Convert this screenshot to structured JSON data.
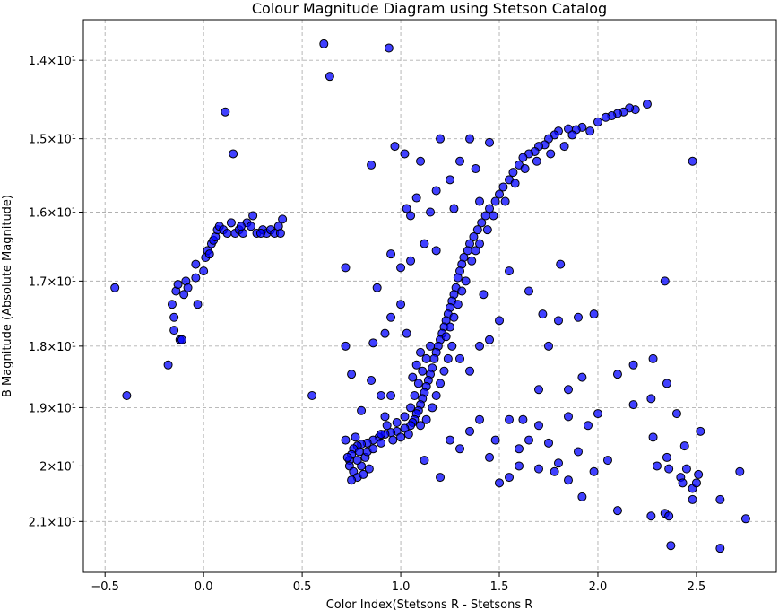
{
  "chart_data": {
    "type": "scatter",
    "title": "Colour Magnitude Diagram using Stetson Catalog",
    "x_label": "Color Index(Stetsons R - Stetsons R",
    "y_label": "B Magnitude (Absolute Magnitude)",
    "color": "#0000ff",
    "edge_color": "#000000",
    "grid": true,
    "log_y": true,
    "invert_y": true,
    "xlim": [
      -0.61,
      2.905
    ],
    "ylim": [
      13.51,
      21.96
    ],
    "xticks": [
      {
        "value": -0.5,
        "label": "−0.5"
      },
      {
        "value": 0,
        "label": "0.0"
      },
      0.5,
      {
        "value": 1,
        "label": "1.0"
      },
      1.5,
      {
        "value": 2,
        "label": "2.0"
      },
      2.5
    ],
    "yticks": [
      {
        "value": 14,
        "label": "1.4×10¹"
      },
      {
        "value": 15,
        "label": "1.5×10¹"
      },
      {
        "value": 16,
        "label": "1.6×10¹"
      },
      {
        "value": 17,
        "label": "1.7×10¹"
      },
      {
        "value": 18,
        "label": "1.8×10¹"
      },
      {
        "value": 19,
        "label": "1.9×10¹"
      },
      {
        "value": 20,
        "label": "2×10¹"
      },
      {
        "value": 21,
        "label": "2.1×10¹"
      }
    ],
    "x": [
      -0.45,
      -0.39,
      -0.18,
      -0.12,
      -0.11,
      -0.15,
      -0.15,
      -0.16,
      -0.14,
      -0.13,
      -0.1,
      -0.09,
      -0.08,
      -0.04,
      -0.03,
      -0.04,
      0.0,
      0.01,
      0.02,
      0.03,
      0.04,
      0.05,
      0.06,
      0.07,
      0.08,
      0.1,
      0.12,
      0.14,
      0.16,
      0.18,
      0.2,
      0.22,
      0.24,
      0.25,
      0.27,
      0.3,
      0.32,
      0.34,
      0.36,
      0.38,
      0.39,
      0.4,
      0.29,
      0.19,
      0.61,
      0.64,
      0.94,
      0.11,
      0.15,
      0.55,
      2.48,
      1.81,
      2.34,
      2.25,
      2.19,
      2.16,
      2.13,
      2.1,
      2.07,
      2.04,
      2.0,
      1.92,
      1.89,
      1.85,
      1.8,
      1.78,
      1.75,
      1.73,
      1.7,
      1.68,
      1.65,
      1.62,
      1.6,
      1.57,
      1.55,
      1.52,
      1.5,
      1.48,
      1.45,
      1.43,
      1.41,
      1.39,
      1.37,
      1.35,
      1.34,
      1.32,
      1.31,
      1.3,
      1.29,
      1.28,
      1.27,
      1.26,
      1.25,
      1.24,
      1.23,
      1.22,
      1.21,
      1.2,
      1.19,
      1.18,
      1.17,
      1.16,
      1.15,
      1.14,
      1.13,
      1.12,
      1.11,
      1.1,
      1.09,
      1.08,
      1.07,
      1.06,
      1.05,
      1.02,
      0.98,
      0.95,
      0.92,
      0.89,
      0.86,
      0.83,
      0.8,
      0.78,
      0.76,
      0.75,
      0.74,
      0.74,
      0.76,
      0.78,
      0.8,
      0.82,
      0.84,
      0.79,
      0.77,
      0.72,
      0.73,
      0.75,
      0.9,
      0.96,
      1.0,
      1.04,
      1.1,
      1.13,
      1.16,
      1.18,
      1.2,
      1.22,
      1.24,
      1.26,
      1.23,
      1.25,
      1.27,
      1.29,
      1.31,
      1.33,
      1.36,
      1.38,
      1.4,
      1.44,
      1.47,
      1.53,
      1.58,
      1.63,
      1.69,
      1.76,
      1.83,
      1.87,
      1.96,
      0.85,
      0.97,
      1.02,
      1.1,
      1.2,
      1.3,
      1.35,
      1.45,
      1.38,
      1.25,
      1.18,
      1.08,
      1.03,
      1.05,
      1.15,
      1.27,
      1.4,
      0.95,
      1.0,
      1.05,
      1.12,
      1.18,
      0.72,
      0.88,
      0.95,
      1.0,
      1.03,
      0.92,
      0.86,
      0.72,
      0.75,
      0.85,
      0.9,
      0.95,
      0.8,
      0.92,
      1.3,
      1.35,
      1.4,
      1.45,
      1.5,
      1.42,
      1.55,
      1.65,
      1.72,
      1.8,
      1.9,
      1.98,
      1.7,
      1.75,
      1.85,
      1.92,
      2.1,
      2.18,
      2.28,
      2.27,
      2.18,
      2.35,
      2.4,
      2.52,
      2.0,
      1.95,
      1.85,
      1.7,
      1.65,
      1.75,
      1.9,
      1.8,
      1.85,
      1.92,
      1.98,
      2.05,
      2.1,
      2.27,
      2.28,
      2.3,
      2.35,
      2.36,
      2.42,
      2.45,
      2.48,
      2.5,
      2.51,
      2.43,
      2.48,
      2.62,
      2.72,
      2.75,
      2.62,
      2.37,
      2.34,
      2.36,
      2.44,
      1.6,
      1.55,
      1.5,
      1.45,
      1.48,
      1.4,
      1.3,
      1.25,
      1.12,
      1.2,
      1.35,
      1.55,
      1.62,
      1.6,
      1.7,
      1.78,
      0.78,
      0.81,
      0.83,
      0.86,
      0.9,
      0.93,
      0.98,
      1.02,
      1.05,
      1.07,
      1.09,
      1.11,
      1.13,
      1.15,
      1.08,
      1.06,
      1.1
    ],
    "values": [
      17.1,
      18.8,
      18.3,
      17.9,
      17.9,
      17.75,
      17.55,
      17.35,
      17.15,
      17.05,
      17.2,
      17.0,
      17.1,
      16.95,
      17.35,
      16.75,
      16.85,
      16.65,
      16.55,
      16.6,
      16.45,
      16.4,
      16.35,
      16.25,
      16.2,
      16.25,
      16.3,
      16.15,
      16.3,
      16.25,
      16.3,
      16.15,
      16.2,
      16.05,
      16.3,
      16.25,
      16.3,
      16.25,
      16.3,
      16.2,
      16.3,
      16.1,
      16.3,
      16.2,
      13.8,
      14.2,
      13.85,
      14.65,
      15.2,
      18.8,
      15.3,
      16.75,
      17.0,
      14.55,
      14.62,
      14.6,
      14.65,
      14.67,
      14.7,
      14.72,
      14.78,
      14.85,
      14.88,
      14.87,
      14.9,
      14.95,
      15.0,
      15.08,
      15.1,
      15.17,
      15.2,
      15.25,
      15.35,
      15.45,
      15.55,
      15.65,
      15.75,
      15.85,
      15.95,
      16.05,
      16.15,
      16.25,
      16.35,
      16.45,
      16.55,
      16.65,
      16.75,
      16.85,
      16.95,
      17.1,
      17.2,
      17.3,
      17.4,
      17.5,
      17.6,
      17.7,
      17.8,
      17.9,
      18.0,
      18.1,
      18.2,
      18.35,
      18.45,
      18.55,
      18.65,
      18.75,
      18.85,
      18.95,
      19.05,
      19.1,
      19.2,
      19.25,
      19.3,
      19.35,
      19.4,
      19.42,
      19.45,
      19.5,
      19.55,
      19.6,
      19.62,
      19.65,
      19.7,
      19.8,
      19.9,
      20.0,
      20.1,
      20.2,
      20.0,
      19.85,
      20.05,
      19.75,
      19.5,
      19.55,
      19.85,
      20.25,
      19.6,
      19.55,
      19.5,
      19.45,
      19.3,
      19.2,
      19.0,
      18.8,
      18.6,
      18.4,
      18.2,
      18.0,
      17.85,
      17.7,
      17.55,
      17.35,
      17.15,
      17.0,
      16.7,
      16.55,
      16.45,
      16.25,
      16.05,
      15.85,
      15.6,
      15.4,
      15.3,
      15.2,
      15.1,
      14.95,
      14.9,
      15.35,
      15.1,
      15.2,
      15.3,
      15.0,
      15.3,
      15.0,
      15.05,
      15.4,
      15.55,
      15.7,
      15.8,
      15.95,
      16.05,
      16.0,
      15.95,
      15.85,
      16.6,
      16.8,
      16.7,
      16.45,
      16.55,
      16.8,
      17.1,
      17.55,
      17.35,
      17.8,
      17.8,
      17.95,
      18.0,
      18.45,
      18.55,
      18.8,
      18.8,
      19.05,
      19.15,
      18.2,
      18.4,
      18.0,
      17.9,
      17.6,
      17.2,
      16.85,
      17.15,
      17.5,
      17.6,
      17.55,
      17.5,
      18.7,
      18.0,
      18.7,
      18.5,
      18.45,
      18.3,
      18.2,
      18.85,
      18.95,
      18.6,
      19.1,
      19.4,
      19.1,
      19.3,
      19.15,
      19.3,
      19.55,
      19.6,
      19.75,
      19.95,
      20.25,
      20.55,
      20.1,
      19.9,
      20.8,
      20.9,
      19.5,
      20.0,
      19.85,
      20.05,
      20.2,
      20.05,
      20.4,
      20.3,
      20.15,
      20.3,
      20.6,
      20.6,
      20.1,
      20.95,
      21.5,
      21.45,
      20.85,
      20.9,
      19.65,
      20.0,
      20.2,
      20.3,
      19.85,
      19.55,
      19.2,
      19.7,
      19.55,
      19.9,
      20.2,
      19.4,
      19.2,
      19.2,
      19.7,
      20.05,
      20.1,
      19.9,
      20.15,
      19.75,
      19.7,
      19.45,
      19.3,
      19.25,
      19.15,
      19.0,
      18.8,
      18.6,
      18.4,
      18.2,
      18.0,
      18.3,
      18.5,
      18.1
    ]
  }
}
